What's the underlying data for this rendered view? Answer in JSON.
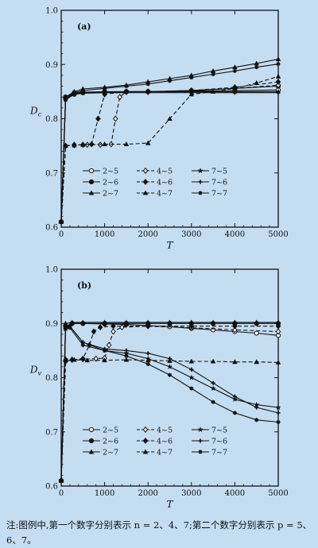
{
  "chart_data": [
    {
      "type": "line",
      "panel_label": "(a)",
      "xlabel": "T",
      "ylabel": "Dc",
      "ylabel_main": "D",
      "ylabel_sub": "c",
      "xlim": [
        0,
        5000
      ],
      "ylim": [
        0.6,
        1.0
      ],
      "xticks": [
        "0",
        "1000",
        "2000",
        "3000",
        "4000",
        "5000"
      ],
      "yticks": [
        "0.6",
        "0.7",
        "0.8",
        "0.9",
        "1.0"
      ],
      "legend_position": "lower-center",
      "series": [
        {
          "name": "2~5",
          "marker": "open-circle",
          "dash": "solid",
          "x": [
            0,
            100,
            300,
            500,
            1000,
            1500,
            2000,
            3000,
            4000,
            5000
          ],
          "y": [
            0.61,
            0.84,
            0.845,
            0.848,
            0.849,
            0.85,
            0.85,
            0.851,
            0.852,
            0.853
          ]
        },
        {
          "name": "2~6",
          "marker": "filled-circle",
          "dash": "solid",
          "x": [
            0,
            100,
            300,
            500,
            1000,
            1500,
            2000,
            3000,
            4000,
            5000
          ],
          "y": [
            0.61,
            0.84,
            0.848,
            0.849,
            0.85,
            0.85,
            0.85,
            0.852,
            0.856,
            0.86
          ]
        },
        {
          "name": "2~7",
          "marker": "filled-triangle",
          "dash": "solid",
          "x": [
            0,
            100,
            300,
            500,
            1000,
            1500,
            2000,
            2500,
            3000,
            3500,
            4000,
            4500,
            5000
          ],
          "y": [
            0.61,
            0.84,
            0.85,
            0.855,
            0.858,
            0.862,
            0.868,
            0.874,
            0.88,
            0.888,
            0.895,
            0.902,
            0.91
          ]
        },
        {
          "name": "4~5",
          "marker": "open-diamond",
          "dash": "dashed",
          "x": [
            0,
            100,
            300,
            600,
            900,
            1150,
            1250,
            1350,
            1500,
            2000,
            3000,
            4000,
            5000
          ],
          "y": [
            0.61,
            0.75,
            0.752,
            0.752,
            0.752,
            0.753,
            0.8,
            0.84,
            0.85,
            0.85,
            0.852,
            0.856,
            0.862
          ]
        },
        {
          "name": "4~6",
          "marker": "filled-diamond",
          "dash": "dashed",
          "x": [
            0,
            100,
            300,
            500,
            700,
            850,
            1000,
            1500,
            2000,
            3000,
            4000,
            5000
          ],
          "y": [
            0.61,
            0.75,
            0.751,
            0.752,
            0.753,
            0.8,
            0.845,
            0.85,
            0.85,
            0.852,
            0.858,
            0.868
          ]
        },
        {
          "name": "4~7",
          "marker": "filled-triangle",
          "dash": "dashed",
          "x": [
            0,
            100,
            300,
            500,
            1000,
            1500,
            2000,
            2500,
            3000,
            3500,
            4000,
            4500,
            5000
          ],
          "y": [
            0.61,
            0.75,
            0.751,
            0.752,
            0.753,
            0.753,
            0.755,
            0.8,
            0.845,
            0.85,
            0.856,
            0.866,
            0.878
          ]
        },
        {
          "name": "7~5",
          "marker": "star",
          "dash": "solid",
          "x": [
            0,
            100,
            300,
            500,
            1000,
            1500,
            2000,
            3000,
            4000,
            5000
          ],
          "y": [
            0.61,
            0.835,
            0.846,
            0.848,
            0.849,
            0.85,
            0.85,
            0.85,
            0.85,
            0.85
          ]
        },
        {
          "name": "7~6",
          "marker": "plus",
          "dash": "solid",
          "x": [
            0,
            100,
            300,
            500,
            1000,
            1500,
            2000,
            3000,
            4000,
            5000
          ],
          "y": [
            0.61,
            0.835,
            0.845,
            0.847,
            0.848,
            0.848,
            0.848,
            0.848,
            0.848,
            0.848
          ]
        },
        {
          "name": "7~7",
          "marker": "asterisk",
          "dash": "solid",
          "x": [
            0,
            100,
            300,
            500,
            1000,
            1500,
            2000,
            2500,
            3000,
            3500,
            4000,
            4500,
            5000
          ],
          "y": [
            0.61,
            0.835,
            0.848,
            0.852,
            0.856,
            0.86,
            0.864,
            0.87,
            0.876,
            0.882,
            0.888,
            0.895,
            0.901
          ]
        }
      ]
    },
    {
      "type": "line",
      "panel_label": "(b)",
      "xlabel": "T",
      "ylabel": "Dv",
      "ylabel_main": "D",
      "ylabel_sub": "v",
      "xlim": [
        0,
        5000
      ],
      "ylim": [
        0.6,
        1.0
      ],
      "xticks": [
        "0",
        "1000",
        "2000",
        "3000",
        "4000",
        "5000"
      ],
      "yticks": [
        "0.6",
        "0.7",
        "0.8",
        "0.9",
        "1.0"
      ],
      "legend_position": "lower-center",
      "series": [
        {
          "name": "2~5",
          "marker": "open-circle",
          "dash": "solid",
          "x": [
            0,
            100,
            250,
            500,
            1000,
            1500,
            2000,
            2500,
            3000,
            3500,
            4000,
            4500,
            5000
          ],
          "y": [
            0.61,
            0.895,
            0.9,
            0.9,
            0.899,
            0.898,
            0.896,
            0.894,
            0.891,
            0.888,
            0.885,
            0.882,
            0.878
          ]
        },
        {
          "name": "2~6",
          "marker": "filled-circle",
          "dash": "solid",
          "x": [
            0,
            100,
            250,
            500,
            1000,
            1500,
            2000,
            2500,
            3000,
            3500,
            4000,
            4500,
            5000
          ],
          "y": [
            0.61,
            0.895,
            0.9,
            0.9,
            0.9,
            0.9,
            0.9,
            0.9,
            0.9,
            0.9,
            0.9,
            0.9,
            0.9
          ]
        },
        {
          "name": "2~7",
          "marker": "filled-triangle",
          "dash": "solid",
          "x": [
            0,
            100,
            250,
            500,
            1000,
            1500,
            2000,
            2500,
            3000,
            3500,
            4000,
            4500,
            5000
          ],
          "y": [
            0.61,
            0.9,
            0.902,
            0.902,
            0.902,
            0.902,
            0.902,
            0.902,
            0.902,
            0.902,
            0.902,
            0.902,
            0.902
          ]
        },
        {
          "name": "4~5",
          "marker": "open-diamond",
          "dash": "dashed",
          "x": [
            0,
            100,
            250,
            500,
            800,
            1000,
            1100,
            1200,
            1400,
            2000,
            3000,
            4000,
            5000
          ],
          "y": [
            0.61,
            0.83,
            0.833,
            0.834,
            0.835,
            0.836,
            0.86,
            0.885,
            0.893,
            0.895,
            0.892,
            0.888,
            0.885
          ]
        },
        {
          "name": "4~6",
          "marker": "filled-diamond",
          "dash": "dashed",
          "x": [
            0,
            100,
            250,
            500,
            650,
            750,
            900,
            1200,
            2000,
            3000,
            4000,
            5000
          ],
          "y": [
            0.61,
            0.83,
            0.833,
            0.835,
            0.86,
            0.885,
            0.893,
            0.895,
            0.895,
            0.895,
            0.895,
            0.895
          ]
        },
        {
          "name": "4~7",
          "marker": "filled-triangle",
          "dash": "dashed",
          "x": [
            0,
            100,
            300,
            600,
            1000,
            1500,
            2000,
            2500,
            3000,
            3500,
            4000,
            4500,
            5000
          ],
          "y": [
            0.61,
            0.835,
            0.833,
            0.832,
            0.832,
            0.833,
            0.832,
            0.831,
            0.83,
            0.83,
            0.829,
            0.829,
            0.828
          ]
        },
        {
          "name": "7~5",
          "marker": "star",
          "dash": "solid",
          "x": [
            0,
            100,
            200,
            500,
            1000,
            1500,
            2000,
            2500,
            3000,
            3500,
            4000,
            4500,
            5000
          ],
          "y": [
            0.61,
            0.89,
            0.895,
            0.865,
            0.85,
            0.845,
            0.835,
            0.82,
            0.8,
            0.78,
            0.76,
            0.75,
            0.745
          ]
        },
        {
          "name": "7~6",
          "marker": "plus",
          "dash": "solid",
          "x": [
            0,
            100,
            200,
            500,
            1000,
            1500,
            2000,
            2500,
            3000,
            3500,
            4000,
            4500,
            5000
          ],
          "y": [
            0.61,
            0.89,
            0.895,
            0.865,
            0.853,
            0.85,
            0.845,
            0.835,
            0.815,
            0.79,
            0.765,
            0.745,
            0.735
          ]
        },
        {
          "name": "7~7",
          "marker": "asterisk",
          "dash": "solid",
          "x": [
            0,
            100,
            200,
            500,
            1000,
            1500,
            2000,
            2500,
            3000,
            3500,
            4000,
            4500,
            5000
          ],
          "y": [
            0.61,
            0.89,
            0.892,
            0.86,
            0.85,
            0.84,
            0.825,
            0.805,
            0.78,
            0.755,
            0.735,
            0.722,
            0.718
          ]
        }
      ]
    }
  ],
  "note": "注:图例中,第一个数字分别表示 n = 2、4、7;第二个数字分别表示 p = 5、6、7。"
}
